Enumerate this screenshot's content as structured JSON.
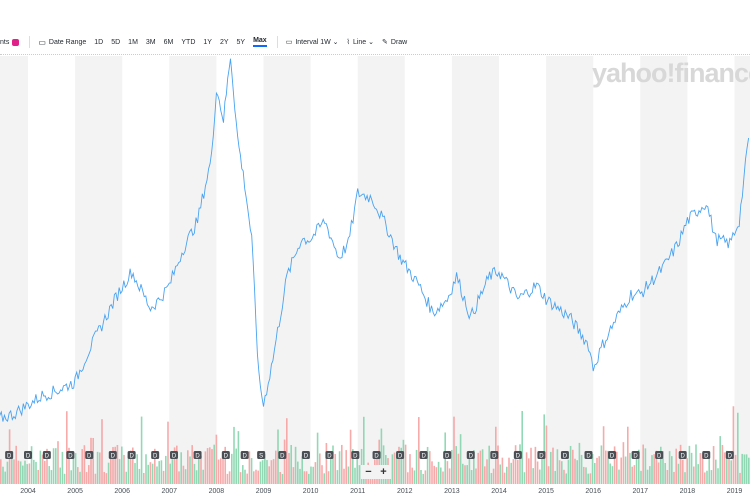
{
  "toolbar": {
    "events_label": "nts",
    "date_range_label": "Date Range",
    "ranges": [
      "1D",
      "5D",
      "1M",
      "3M",
      "6M",
      "YTD",
      "1Y",
      "2Y",
      "5Y",
      "Max"
    ],
    "active_range": "Max",
    "interval_label": "Interval",
    "interval_value": "1W",
    "chart_type": "Line",
    "draw_label": "Draw"
  },
  "watermark": "yahoo!finance",
  "zoom": {
    "minus": "−",
    "plus": "+"
  },
  "colors": {
    "line": "#4aa3f0",
    "vol_up": "#7fd1a8",
    "vol_down": "#f59b9b",
    "band": "#f3f3f3",
    "badge": "#e0218a"
  },
  "chart_data": {
    "type": "line",
    "title": "",
    "xlabel": "",
    "ylabel": "",
    "x_ticks": [
      "2004",
      "2005",
      "2006",
      "2007",
      "2008",
      "2009",
      "2010",
      "2011",
      "2012",
      "2013",
      "2014",
      "2015",
      "2016",
      "2017",
      "2018",
      "2019"
    ],
    "xlim": [
      2003.4,
      2019.35
    ],
    "ylim": [
      0,
      450
    ],
    "y_note": "relative price level (no axis labels visible)",
    "series": [
      {
        "name": "Price",
        "x": [
          2003.4,
          2003.7,
          2004,
          2004.3,
          2004.6,
          2005,
          2005.3,
          2005.6,
          2005.9,
          2006.2,
          2006.4,
          2006.6,
          2006.8,
          2007,
          2007.3,
          2007.6,
          2007.9,
          2008.0,
          2008.15,
          2008.3,
          2008.45,
          2008.6,
          2008.75,
          2008.9,
          2009.0,
          2009.2,
          2009.5,
          2009.8,
          2010,
          2010.3,
          2010.6,
          2010.8,
          2011,
          2011.3,
          2011.6,
          2011.9,
          2012.3,
          2012.6,
          2012.9,
          2013.1,
          2013.4,
          2013.8,
          2014,
          2014.4,
          2014.8,
          2015,
          2015.5,
          2015.9,
          2016.0,
          2016.2,
          2016.5,
          2016.8,
          2017,
          2017.5,
          2017.8,
          2018,
          2018.4,
          2018.6,
          2018.9,
          2019.1,
          2019.3
        ],
        "values": [
          45,
          50,
          60,
          70,
          75,
          85,
          120,
          150,
          180,
          205,
          185,
          165,
          175,
          190,
          230,
          260,
          330,
          405,
          370,
          440,
          350,
          300,
          240,
          90,
          60,
          110,
          200,
          240,
          240,
          260,
          220,
          235,
          290,
          285,
          255,
          220,
          190,
          160,
          175,
          200,
          155,
          200,
          205,
          175,
          190,
          175,
          155,
          125,
          100,
          125,
          155,
          180,
          180,
          210,
          235,
          260,
          280,
          240,
          235,
          260,
          350
        ]
      }
    ],
    "volume": {
      "pattern": "weekly up/down bars",
      "up_color": "#7fd1a8",
      "down_color": "#f59b9b"
    },
    "event_markers": [
      {
        "x": 2003.6,
        "label": "D"
      },
      {
        "x": 2004.0,
        "label": "D"
      },
      {
        "x": 2004.4,
        "label": "D"
      },
      {
        "x": 2004.9,
        "label": "D"
      },
      {
        "x": 2005.3,
        "label": "D"
      },
      {
        "x": 2005.8,
        "label": "D"
      },
      {
        "x": 2006.2,
        "label": "D"
      },
      {
        "x": 2006.7,
        "label": "D"
      },
      {
        "x": 2007.1,
        "label": "D"
      },
      {
        "x": 2007.6,
        "label": "D"
      },
      {
        "x": 2008.2,
        "label": "D"
      },
      {
        "x": 2008.6,
        "label": "D"
      },
      {
        "x": 2008.95,
        "label": "S"
      },
      {
        "x": 2009.4,
        "label": "D"
      },
      {
        "x": 2009.9,
        "label": "D"
      },
      {
        "x": 2010.4,
        "label": "D"
      },
      {
        "x": 2010.95,
        "label": "D"
      },
      {
        "x": 2011.4,
        "label": "D"
      },
      {
        "x": 2011.9,
        "label": "D"
      },
      {
        "x": 2012.4,
        "label": "D"
      },
      {
        "x": 2012.9,
        "label": "D"
      },
      {
        "x": 2013.4,
        "label": "D"
      },
      {
        "x": 2013.9,
        "label": "D"
      },
      {
        "x": 2014.4,
        "label": "D"
      },
      {
        "x": 2014.9,
        "label": "D"
      },
      {
        "x": 2015.4,
        "label": "D"
      },
      {
        "x": 2015.9,
        "label": "D"
      },
      {
        "x": 2016.4,
        "label": "D"
      },
      {
        "x": 2016.9,
        "label": "D"
      },
      {
        "x": 2017.4,
        "label": "D"
      },
      {
        "x": 2017.9,
        "label": "D"
      },
      {
        "x": 2018.4,
        "label": "D"
      },
      {
        "x": 2018.9,
        "label": "D"
      }
    ]
  }
}
